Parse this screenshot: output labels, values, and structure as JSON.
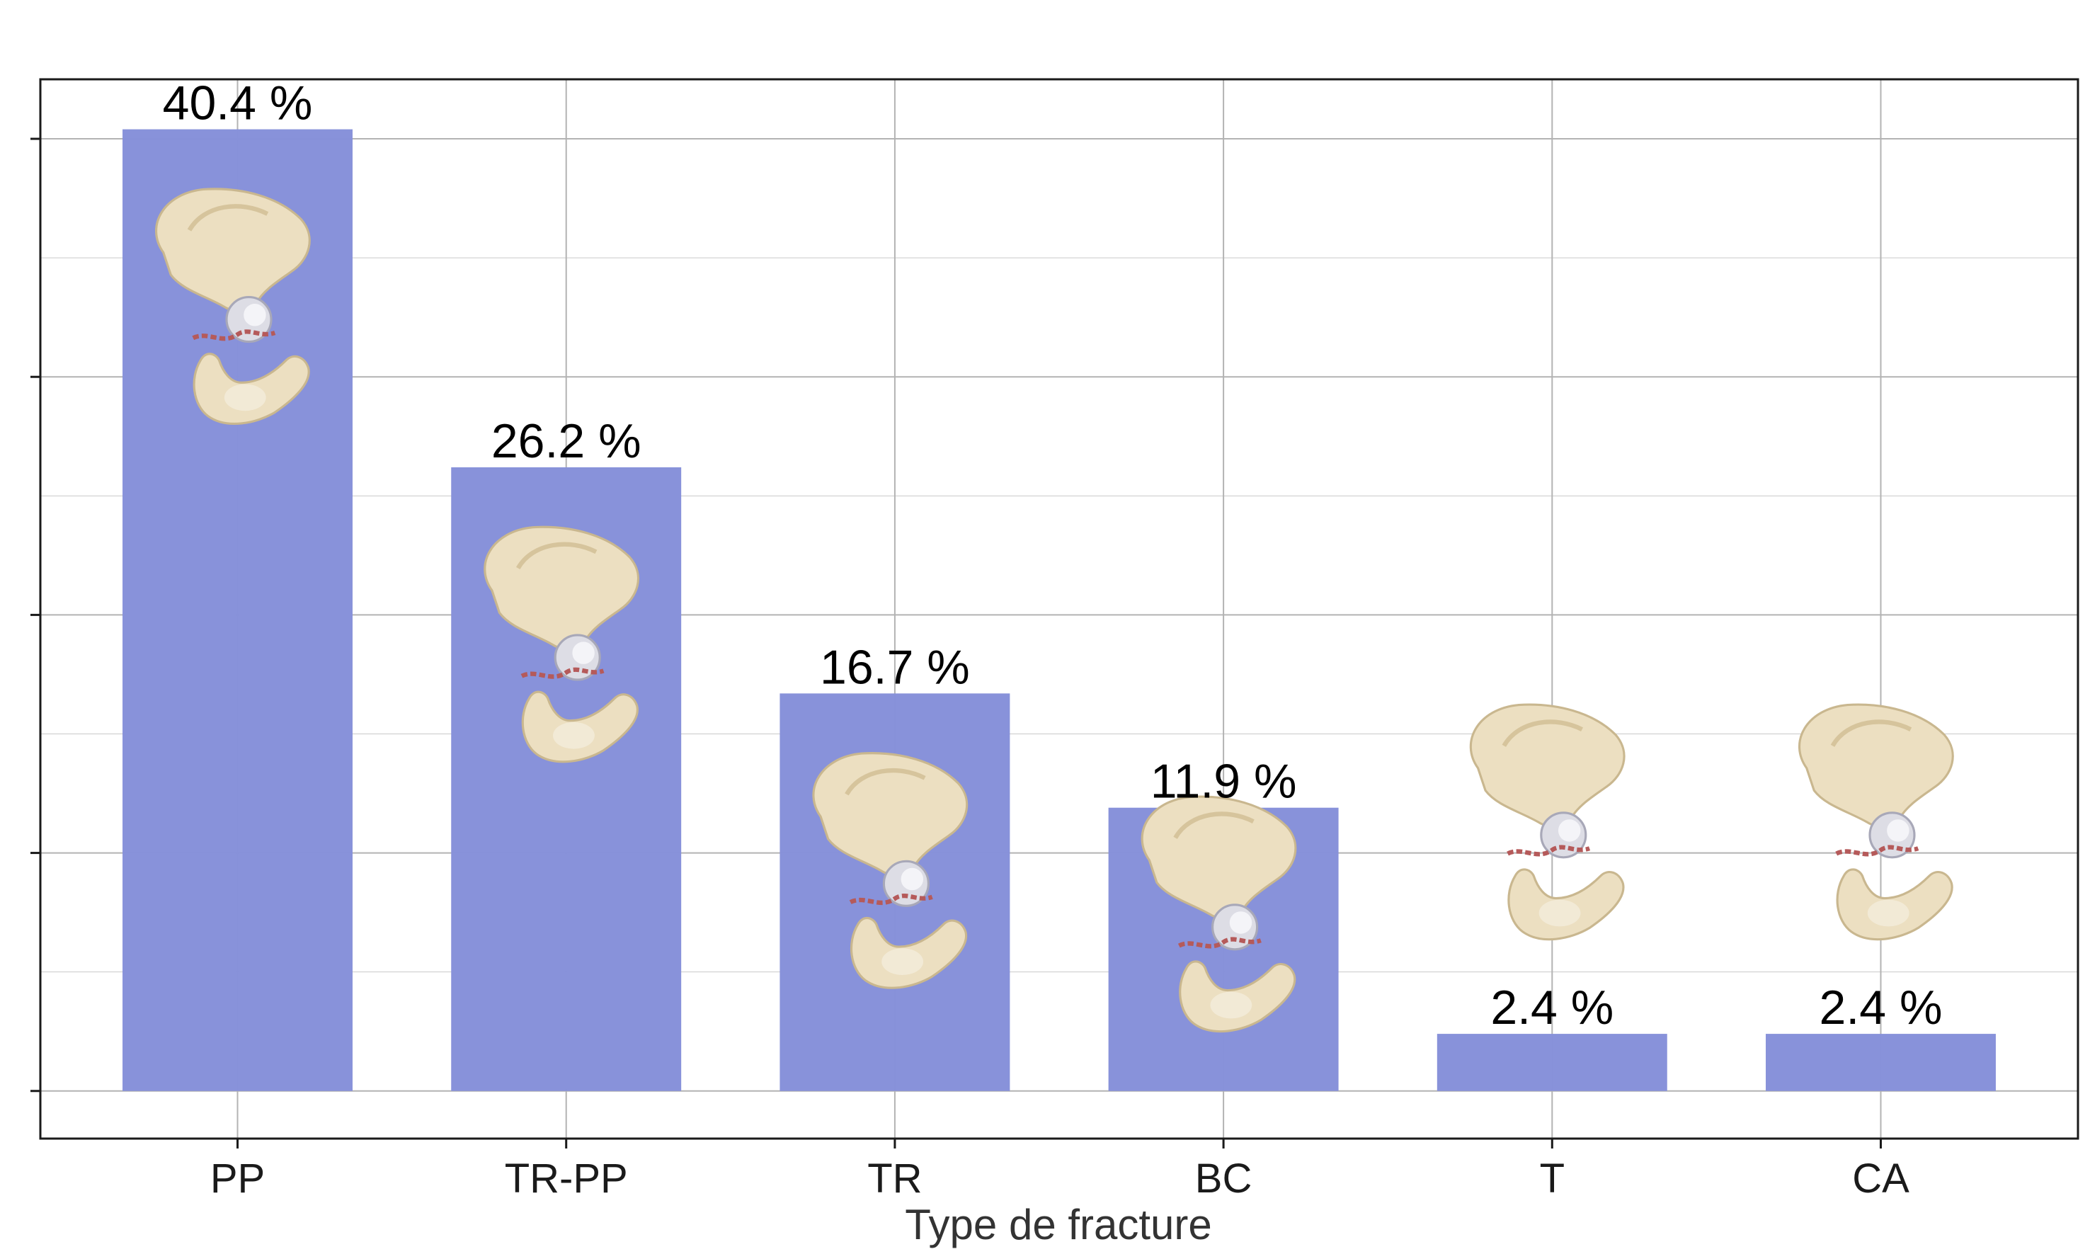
{
  "chart_data": {
    "type": "bar",
    "title": "",
    "xlabel": "Type de fracture",
    "ylabel": "",
    "categories": [
      "PP",
      "TR-PP",
      "TR",
      "BC",
      "T",
      "CA"
    ],
    "values": [
      40.4,
      26.2,
      16.7,
      11.9,
      2.4,
      2.4
    ],
    "value_labels": [
      "40.4 %",
      "26.2 %",
      "16.7 %",
      "11.9 %",
      "2.4 %",
      "2.4 %"
    ],
    "ylim": [
      -2.0,
      42.5
    ],
    "y_ticks": [
      0,
      10,
      20,
      30,
      40
    ],
    "y_tick_labels_visible": false,
    "grid": true,
    "legend": "none",
    "bar_color": "#8690d9",
    "bar_overlay": "pelvis fracture illustrations",
    "colors": {
      "background": "#ffffff",
      "grid": "#b3b3b3",
      "border": "#1a1a1a",
      "bone": "#e8dcbf",
      "fracture": "#b55a5a"
    }
  }
}
